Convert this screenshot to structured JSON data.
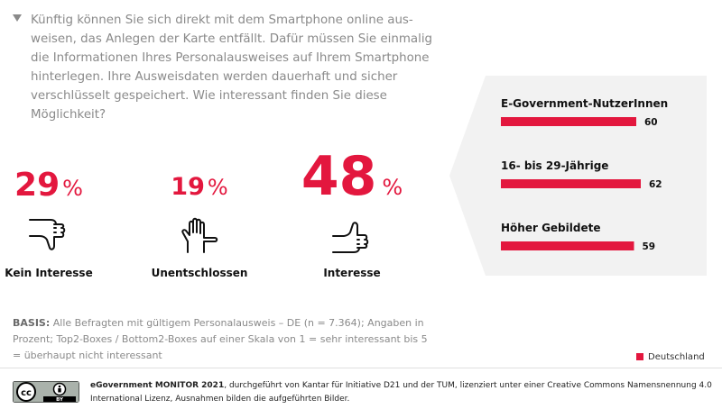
{
  "question": {
    "lines": [
      "Künftig können Sie sich direkt mit dem Smartphone online aus-",
      "weisen, das Anlegen der Karte entfällt. Dafür müssen Sie einmalig",
      "die Informationen Ihres Personalausweises auf Ihrem Smartphone",
      "hinterlegen. Ihre Ausweisdaten werden dauerhaft und sicher",
      "verschlüsselt gespeichert. Wie interessant finden Sie diese",
      "Möglichkeit?"
    ]
  },
  "chart_data": [
    {
      "type": "table",
      "categories": [
        "Kein Interesse",
        "Unentschlossen",
        "Interesse"
      ],
      "values": [
        29,
        19,
        48
      ],
      "unit": "%",
      "icons": [
        "thumbs-down-icon",
        "flat-hand-icon",
        "thumbs-up-icon"
      ]
    },
    {
      "type": "bar",
      "orientation": "horizontal",
      "categories": [
        "E-Government-NutzerInnen",
        "16- bis 29-Jährige",
        "Höher Gebildete"
      ],
      "series": [
        {
          "name": "Deutschland",
          "values": [
            60,
            62,
            59
          ]
        }
      ],
      "xlim": [
        0,
        100
      ],
      "grid": false
    }
  ],
  "basis": {
    "label": "BASIS:",
    "text": "Alle Befragten mit gültigem Personalausweis – DE (n = 7.364); Angaben in Prozent; Top2-Boxes / Bottom2-Boxes auf einer Skala von 1 = sehr interessant bis 5 = überhaupt nicht interessant"
  },
  "legend": {
    "label": "Deutschland"
  },
  "footer": {
    "title": "eGovernment MONITOR 2021",
    "text": ", durchgeführt von Kantar für Initiative D21 und der TUM, lizenziert unter einer Creative Commons Namensnennung 4.0 International Lizenz, Ausnahmen bilden die aufgeführten Bilder.",
    "license_badge": "BY"
  },
  "colors": {
    "accent": "#e3173e",
    "muted_text": "#8a8a8a",
    "panel_bg": "#f2f2f2"
  }
}
